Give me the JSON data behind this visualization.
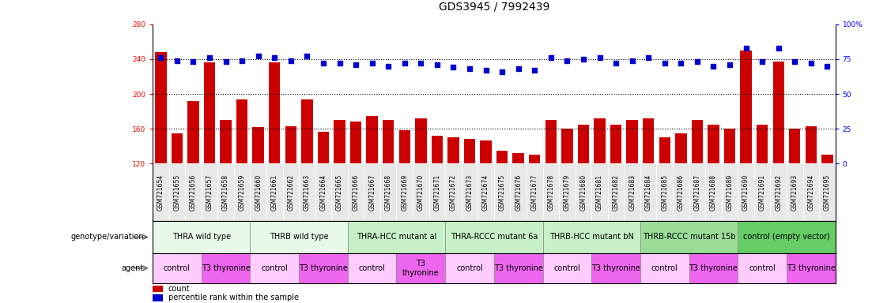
{
  "title": "GDS3945 / 7992439",
  "samples": [
    "GSM721654",
    "GSM721655",
    "GSM721656",
    "GSM721657",
    "GSM721658",
    "GSM721659",
    "GSM721660",
    "GSM721661",
    "GSM721662",
    "GSM721663",
    "GSM721664",
    "GSM721665",
    "GSM721666",
    "GSM721667",
    "GSM721668",
    "GSM721669",
    "GSM721670",
    "GSM721671",
    "GSM721672",
    "GSM721673",
    "GSM721674",
    "GSM721675",
    "GSM721676",
    "GSM721677",
    "GSM721678",
    "GSM721679",
    "GSM721680",
    "GSM721681",
    "GSM721682",
    "GSM721683",
    "GSM721684",
    "GSM721685",
    "GSM721686",
    "GSM721687",
    "GSM721688",
    "GSM721689",
    "GSM721690",
    "GSM721691",
    "GSM721692",
    "GSM721693",
    "GSM721694",
    "GSM721695"
  ],
  "bar_heights": [
    248,
    155,
    192,
    236,
    170,
    194,
    162,
    236,
    163,
    194,
    157,
    170,
    168,
    175,
    170,
    158,
    172,
    152,
    150,
    148,
    147,
    135,
    132,
    130,
    170,
    160,
    165,
    172,
    165,
    170,
    172,
    150,
    155,
    170,
    165,
    160,
    250,
    165,
    237,
    160,
    163,
    130
  ],
  "dot_values": [
    76,
    74,
    73,
    76,
    73,
    74,
    77,
    76,
    74,
    77,
    72,
    72,
    71,
    72,
    70,
    72,
    72,
    71,
    69,
    68,
    67,
    66,
    68,
    67,
    76,
    74,
    75,
    76,
    72,
    74,
    76,
    72,
    72,
    73,
    70,
    71,
    83,
    73,
    83,
    73,
    72,
    70
  ],
  "ylim_left": [
    120,
    280
  ],
  "ylim_right": [
    0,
    100
  ],
  "yticks_left": [
    120,
    160,
    200,
    240,
    280
  ],
  "yticks_right": [
    0,
    25,
    50,
    75,
    100
  ],
  "ytick_labels_right": [
    "0",
    "25",
    "50",
    "75",
    "100%"
  ],
  "bar_color": "#cc0000",
  "dot_color": "#0000cc",
  "genotype_groups": [
    {
      "label": "THRA wild type",
      "start": 0,
      "end": 5,
      "color": "#e8f8e8"
    },
    {
      "label": "THRB wild type",
      "start": 6,
      "end": 11,
      "color": "#e8f8e8"
    },
    {
      "label": "THRA-HCC mutant al",
      "start": 12,
      "end": 17,
      "color": "#c8f0c8"
    },
    {
      "label": "THRA-RCCC mutant 6a",
      "start": 18,
      "end": 23,
      "color": "#c8f0c8"
    },
    {
      "label": "THRB-HCC mutant bN",
      "start": 24,
      "end": 29,
      "color": "#c8f0c8"
    },
    {
      "label": "THRB-RCCC mutant 15b",
      "start": 30,
      "end": 35,
      "color": "#99dd99"
    },
    {
      "label": "control (empty vector)",
      "start": 36,
      "end": 41,
      "color": "#66cc66"
    }
  ],
  "agent_groups": [
    {
      "label": "control",
      "start": 0,
      "end": 2,
      "color": "#ffccff"
    },
    {
      "label": "T3 thyronine",
      "start": 3,
      "end": 5,
      "color": "#ee66ee"
    },
    {
      "label": "control",
      "start": 6,
      "end": 8,
      "color": "#ffccff"
    },
    {
      "label": "T3 thyronine",
      "start": 9,
      "end": 11,
      "color": "#ee66ee"
    },
    {
      "label": "control",
      "start": 12,
      "end": 14,
      "color": "#ffccff"
    },
    {
      "label": "T3\nthyronine",
      "start": 15,
      "end": 17,
      "color": "#ee66ee"
    },
    {
      "label": "control",
      "start": 18,
      "end": 20,
      "color": "#ffccff"
    },
    {
      "label": "T3 thyronine",
      "start": 21,
      "end": 23,
      "color": "#ee66ee"
    },
    {
      "label": "control",
      "start": 24,
      "end": 26,
      "color": "#ffccff"
    },
    {
      "label": "T3 thyronine",
      "start": 27,
      "end": 29,
      "color": "#ee66ee"
    },
    {
      "label": "control",
      "start": 30,
      "end": 32,
      "color": "#ffccff"
    },
    {
      "label": "T3 thyronine",
      "start": 33,
      "end": 35,
      "color": "#ee66ee"
    },
    {
      "label": "control",
      "start": 36,
      "end": 38,
      "color": "#ffccff"
    },
    {
      "label": "T3 thyronine",
      "start": 39,
      "end": 41,
      "color": "#ee66ee"
    }
  ],
  "legend_items": [
    {
      "label": "count",
      "color": "#cc0000"
    },
    {
      "label": "percentile rank within the sample",
      "color": "#0000cc"
    }
  ],
  "background_color": "#ffffff",
  "tick_fontsize": 6.5,
  "title_fontsize": 10,
  "annot_fontsize": 7,
  "bar_label_fontsize": 5.5
}
